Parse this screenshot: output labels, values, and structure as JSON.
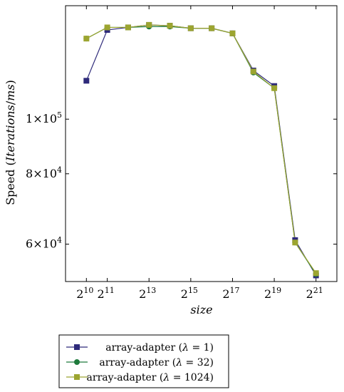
{
  "chart_data": {
    "type": "line",
    "title": "",
    "xlabel": "size",
    "ylabel": "Speed (Iterations/ms)",
    "x_scale": "log2",
    "y_scale": "log",
    "xlim_exp": [
      9,
      22
    ],
    "ylim": [
      51500,
      159000
    ],
    "x_ticks": [
      {
        "exp": 10,
        "base": "2",
        "sup": "10"
      },
      {
        "exp": 11,
        "base": "2",
        "sup": "11"
      },
      {
        "exp": 13,
        "base": "2",
        "sup": "13"
      },
      {
        "exp": 15,
        "base": "2",
        "sup": "15"
      },
      {
        "exp": 17,
        "base": "2",
        "sup": "17"
      },
      {
        "exp": 19,
        "base": "2",
        "sup": "19"
      },
      {
        "exp": 21,
        "base": "2",
        "sup": "21"
      }
    ],
    "y_ticks": [
      {
        "value": 60000,
        "mant": "6",
        "exp": "4"
      },
      {
        "value": 80000,
        "mant": "8",
        "exp": "4"
      },
      {
        "value": 100000,
        "mant": "1",
        "exp": "5"
      }
    ],
    "grid": false,
    "legend_position": "bottom",
    "series": [
      {
        "name": "array-adapter (λ = 1)",
        "color": "#2e2a7a",
        "marker": "square",
        "x_exp": [
          10,
          11,
          12,
          13,
          14,
          15,
          16,
          17,
          18,
          19,
          20,
          21
        ],
        "values": [
          117000,
          144000,
          145500,
          147000,
          146500,
          145000,
          145000,
          142000,
          122000,
          114500,
          61000,
          52800
        ]
      },
      {
        "name": "array-adapter (λ = 32)",
        "color": "#1e7a3c",
        "marker": "circle",
        "x_exp": [
          10,
          11,
          12,
          13,
          14,
          15,
          16,
          17,
          18,
          19,
          20,
          21
        ],
        "values": [
          139000,
          145500,
          145500,
          146000,
          146000,
          145000,
          145000,
          142000,
          121000,
          113500,
          60400,
          53100
        ]
      },
      {
        "name": "array-adapter (λ = 1024)",
        "color": "#9ca530",
        "marker": "square",
        "x_exp": [
          10,
          11,
          12,
          13,
          14,
          15,
          16,
          17,
          18,
          19,
          20,
          21
        ],
        "values": [
          139000,
          145500,
          145500,
          147000,
          146500,
          145000,
          145000,
          142000,
          121500,
          113500,
          60400,
          53300
        ]
      }
    ],
    "legend": {
      "entries": [
        {
          "text": "array-adapter (",
          "greek": "λ",
          "rest": " = 1)"
        },
        {
          "text": "array-adapter (",
          "greek": "λ",
          "rest": " = 32)"
        },
        {
          "text": "array-adapter (",
          "greek": "λ",
          "rest": " = 1024)"
        }
      ]
    }
  }
}
